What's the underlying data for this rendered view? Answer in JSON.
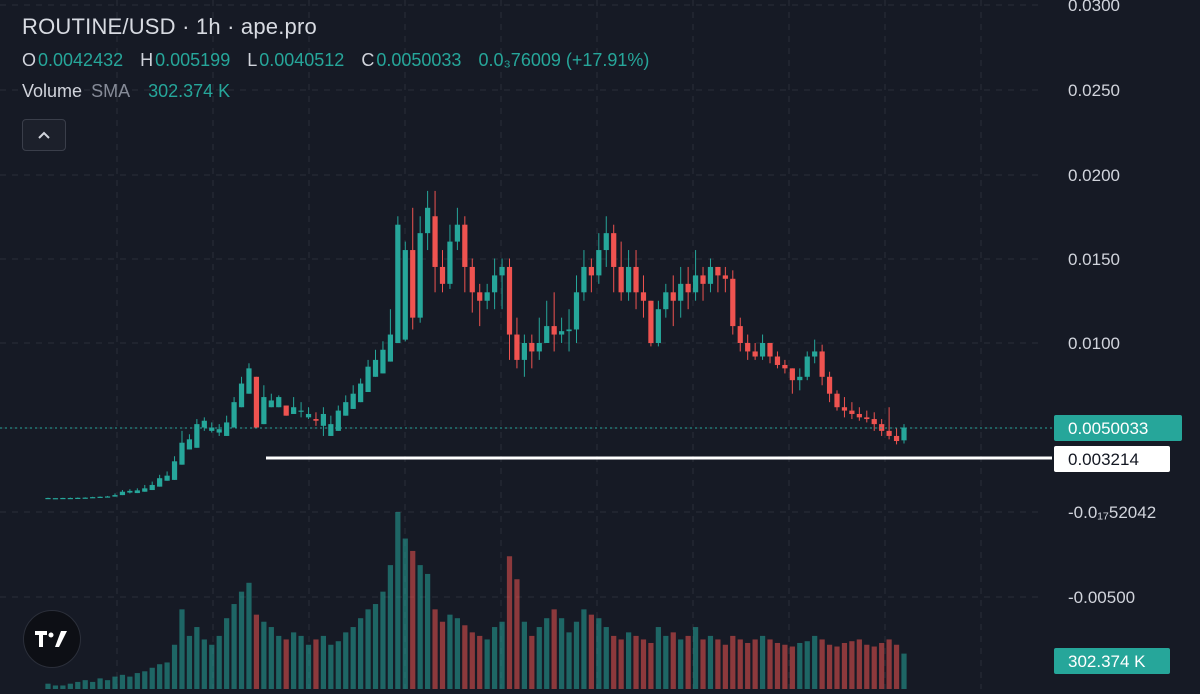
{
  "header": {
    "title": "ROUTINE/USD · 1h · ape.pro",
    "ohlc": [
      {
        "key": "O",
        "value": "0.0042432"
      },
      {
        "key": "H",
        "value": "0.005199"
      },
      {
        "key": "L",
        "value": "0.0040512"
      },
      {
        "key": "C",
        "value": "0.0050033"
      }
    ],
    "change": "0.0₃76009 (+17.91%)",
    "volume_label": "Volume",
    "volume_sma_label": "SMA",
    "volume_value": "302.374 K"
  },
  "colors": {
    "background": "#161a25",
    "up": "#26a69a",
    "down": "#ef5350",
    "grid": "#2a2e39",
    "text": "#d1d4dc"
  },
  "icons": {
    "collapse": "chevron-up-icon",
    "logo": "tradingview-logo-icon"
  },
  "chart_data": {
    "type": "candlestick",
    "y_axis_labels": [
      "0.0300",
      "0.0250",
      "0.0200",
      "0.0150",
      "0.0100",
      "-0.0₁₇52042",
      "-0.00500"
    ],
    "current_price_label": "0.0050033",
    "horizontal_line_label": "0.003214",
    "horizontal_line_value": 0.003214,
    "volume_axis_label": "302.374 K",
    "price_range": [
      -0.0005,
      0.03
    ],
    "grid": true,
    "candles": [
      [
        0.00082,
        0.00084,
        0.00083,
        0.00082
      ],
      [
        0.00082,
        0.00083,
        0.00082,
        0.00082
      ],
      [
        0.00082,
        0.00084,
        0.00083,
        0.00082
      ],
      [
        0.00082,
        0.00085,
        0.00083,
        0.00083
      ],
      [
        0.00083,
        0.00086,
        0.00084,
        0.00083
      ],
      [
        0.00083,
        0.00087,
        0.00085,
        0.00084
      ],
      [
        0.00084,
        0.0009,
        0.00088,
        0.00085
      ],
      [
        0.00086,
        0.00092,
        0.0009,
        0.00087
      ],
      [
        0.00088,
        0.00095,
        0.00092,
        0.00091
      ],
      [
        0.00091,
        0.0011,
        0.001,
        0.001
      ],
      [
        0.001,
        0.0013,
        0.0012,
        0.00115
      ],
      [
        0.00115,
        0.00135,
        0.00125,
        0.0011
      ],
      [
        0.00112,
        0.0014,
        0.00128,
        0.0012
      ],
      [
        0.0012,
        0.0016,
        0.0014,
        0.0013
      ],
      [
        0.0013,
        0.0018,
        0.0016,
        0.0015
      ],
      [
        0.0015,
        0.0022,
        0.002,
        0.00185
      ],
      [
        0.00185,
        0.0024,
        0.00215,
        0.0019
      ],
      [
        0.0019,
        0.0033,
        0.003,
        0.0028
      ],
      [
        0.0028,
        0.0048,
        0.0041,
        0.0037
      ],
      [
        0.0037,
        0.0046,
        0.0043,
        0.0038
      ],
      [
        0.0038,
        0.0055,
        0.0052,
        0.005
      ],
      [
        0.005,
        0.0056,
        0.0054,
        0.0048
      ],
      [
        0.0048,
        0.0053,
        0.005,
        0.0047
      ],
      [
        0.0047,
        0.0052,
        0.0049,
        0.0045
      ],
      [
        0.0045,
        0.0057,
        0.0053,
        0.005
      ],
      [
        0.005,
        0.0068,
        0.0065,
        0.0062
      ],
      [
        0.0062,
        0.008,
        0.0076,
        0.007
      ],
      [
        0.007,
        0.0088,
        0.0085,
        0.008
      ],
      [
        0.008,
        0.0062,
        0.005,
        0.0052
      ],
      [
        0.0052,
        0.0075,
        0.0068,
        0.0062
      ],
      [
        0.0062,
        0.007,
        0.0066,
        0.0062
      ],
      [
        0.0062,
        0.0069,
        0.0068,
        0.0063
      ],
      [
        0.0063,
        0.0062,
        0.0057,
        0.0058
      ],
      [
        0.0058,
        0.0068,
        0.0062,
        0.006
      ],
      [
        0.006,
        0.0065,
        0.006,
        0.0056
      ],
      [
        0.0056,
        0.0062,
        0.0058,
        0.0055
      ],
      [
        0.0055,
        0.0059,
        0.0054,
        0.0051
      ],
      [
        0.0051,
        0.0062,
        0.0058,
        0.0045
      ],
      [
        0.0045,
        0.0057,
        0.0052,
        0.0048
      ],
      [
        0.0048,
        0.0063,
        0.006,
        0.0057
      ],
      [
        0.0057,
        0.0069,
        0.0065,
        0.0061
      ],
      [
        0.0061,
        0.0075,
        0.007,
        0.0065
      ],
      [
        0.0065,
        0.0079,
        0.0076,
        0.0071
      ],
      [
        0.0071,
        0.009,
        0.0086,
        0.008
      ],
      [
        0.008,
        0.0096,
        0.009,
        0.0082
      ],
      [
        0.0082,
        0.0101,
        0.0096,
        0.0089
      ],
      [
        0.0089,
        0.012,
        0.0105,
        0.01
      ],
      [
        0.01,
        0.0175,
        0.017,
        0.0102
      ],
      [
        0.0102,
        0.016,
        0.0155,
        0.0101
      ],
      [
        0.0155,
        0.018,
        0.0115,
        0.0108
      ],
      [
        0.0115,
        0.0175,
        0.0165,
        0.0112
      ],
      [
        0.0165,
        0.019,
        0.018,
        0.0155
      ],
      [
        0.0175,
        0.019,
        0.0145,
        0.013
      ],
      [
        0.0145,
        0.0155,
        0.0135,
        0.013
      ],
      [
        0.0135,
        0.017,
        0.016,
        0.0132
      ],
      [
        0.016,
        0.018,
        0.017,
        0.0155
      ],
      [
        0.017,
        0.0175,
        0.0145,
        0.013
      ],
      [
        0.0145,
        0.015,
        0.013,
        0.0118
      ],
      [
        0.013,
        0.0135,
        0.0125,
        0.011
      ],
      [
        0.0125,
        0.0135,
        0.013,
        0.012
      ],
      [
        0.013,
        0.015,
        0.014,
        0.012
      ],
      [
        0.014,
        0.015,
        0.0145,
        0.012
      ],
      [
        0.0145,
        0.015,
        0.0105,
        0.009
      ],
      [
        0.0105,
        0.0115,
        0.009,
        0.0085
      ],
      [
        0.009,
        0.0105,
        0.01,
        0.008
      ],
      [
        0.01,
        0.0105,
        0.0095,
        0.0085
      ],
      [
        0.0095,
        0.0115,
        0.01,
        0.009
      ],
      [
        0.01,
        0.0125,
        0.011,
        0.01
      ],
      [
        0.011,
        0.013,
        0.0105,
        0.0095
      ],
      [
        0.0105,
        0.0115,
        0.0107,
        0.01
      ],
      [
        0.0107,
        0.012,
        0.0108,
        0.0095
      ],
      [
        0.0108,
        0.014,
        0.013,
        0.01
      ],
      [
        0.013,
        0.0155,
        0.0145,
        0.0125
      ],
      [
        0.0145,
        0.015,
        0.014,
        0.013
      ],
      [
        0.014,
        0.0165,
        0.0155,
        0.0135
      ],
      [
        0.0155,
        0.0175,
        0.0165,
        0.0145
      ],
      [
        0.0165,
        0.017,
        0.0145,
        0.013
      ],
      [
        0.0145,
        0.016,
        0.013,
        0.0125
      ],
      [
        0.013,
        0.0155,
        0.0145,
        0.0125
      ],
      [
        0.0145,
        0.0155,
        0.013,
        0.012
      ],
      [
        0.013,
        0.014,
        0.0125,
        0.0115
      ],
      [
        0.0125,
        0.012,
        0.01,
        0.0098
      ],
      [
        0.01,
        0.0125,
        0.012,
        0.0098
      ],
      [
        0.012,
        0.0135,
        0.013,
        0.0115
      ],
      [
        0.013,
        0.014,
        0.0125,
        0.011
      ],
      [
        0.0125,
        0.0145,
        0.0135,
        0.0115
      ],
      [
        0.0135,
        0.0145,
        0.013,
        0.012
      ],
      [
        0.013,
        0.0155,
        0.014,
        0.0125
      ],
      [
        0.014,
        0.0145,
        0.0135,
        0.0125
      ],
      [
        0.0135,
        0.015,
        0.0145,
        0.013
      ],
      [
        0.0145,
        0.0145,
        0.014,
        0.013
      ],
      [
        0.014,
        0.0145,
        0.0138,
        0.013
      ],
      [
        0.0138,
        0.0143,
        0.011,
        0.0105
      ],
      [
        0.011,
        0.0115,
        0.01,
        0.0095
      ],
      [
        0.01,
        0.0105,
        0.0095,
        0.009
      ],
      [
        0.0095,
        0.01,
        0.0092,
        0.009
      ],
      [
        0.0092,
        0.0105,
        0.01,
        0.009
      ],
      [
        0.01,
        0.01,
        0.0092,
        0.0088
      ],
      [
        0.0092,
        0.0095,
        0.0087,
        0.0085
      ],
      [
        0.0087,
        0.009,
        0.0085,
        0.0082
      ],
      [
        0.0085,
        0.0085,
        0.0078,
        0.007
      ],
      [
        0.0078,
        0.0085,
        0.008,
        0.0072
      ],
      [
        0.008,
        0.0095,
        0.0092,
        0.0078
      ],
      [
        0.0092,
        0.0102,
        0.0095,
        0.0088
      ],
      [
        0.0095,
        0.0099,
        0.008,
        0.0075
      ],
      [
        0.008,
        0.0083,
        0.007,
        0.0065
      ],
      [
        0.007,
        0.0072,
        0.0062,
        0.006
      ],
      [
        0.0062,
        0.0068,
        0.006,
        0.0056
      ],
      [
        0.006,
        0.0065,
        0.0058,
        0.0055
      ],
      [
        0.0058,
        0.0062,
        0.0056,
        0.0054
      ],
      [
        0.0056,
        0.006,
        0.0055,
        0.0053
      ],
      [
        0.0055,
        0.0059,
        0.0052,
        0.0048
      ],
      [
        0.0052,
        0.0055,
        0.0048,
        0.0045
      ],
      [
        0.0048,
        0.0062,
        0.0045,
        0.0043
      ],
      [
        0.0045,
        0.005,
        0.0042,
        0.004
      ],
      [
        0.00424,
        0.0052,
        0.005,
        0.00405
      ]
    ],
    "volumes_relative": [
      0.03,
      0.02,
      0.02,
      0.03,
      0.04,
      0.05,
      0.04,
      0.06,
      0.05,
      0.07,
      0.08,
      0.07,
      0.09,
      0.1,
      0.12,
      0.14,
      0.15,
      0.25,
      0.45,
      0.3,
      0.35,
      0.28,
      0.25,
      0.3,
      0.4,
      0.48,
      0.55,
      0.6,
      0.42,
      0.38,
      0.35,
      0.3,
      0.28,
      0.32,
      0.3,
      0.25,
      0.28,
      0.3,
      0.25,
      0.27,
      0.32,
      0.35,
      0.4,
      0.45,
      0.48,
      0.55,
      0.7,
      1.0,
      0.85,
      0.78,
      0.7,
      0.65,
      0.45,
      0.38,
      0.42,
      0.4,
      0.36,
      0.32,
      0.3,
      0.28,
      0.35,
      0.38,
      0.75,
      0.62,
      0.38,
      0.3,
      0.35,
      0.4,
      0.45,
      0.4,
      0.32,
      0.38,
      0.45,
      0.42,
      0.4,
      0.35,
      0.3,
      0.28,
      0.32,
      0.3,
      0.28,
      0.26,
      0.35,
      0.3,
      0.32,
      0.28,
      0.3,
      0.35,
      0.28,
      0.3,
      0.28,
      0.25,
      0.3,
      0.28,
      0.26,
      0.28,
      0.3,
      0.28,
      0.26,
      0.25,
      0.24,
      0.26,
      0.27,
      0.3,
      0.28,
      0.25,
      0.24,
      0.26,
      0.27,
      0.28,
      0.25,
      0.24,
      0.26,
      0.28,
      0.25,
      0.2
    ]
  }
}
